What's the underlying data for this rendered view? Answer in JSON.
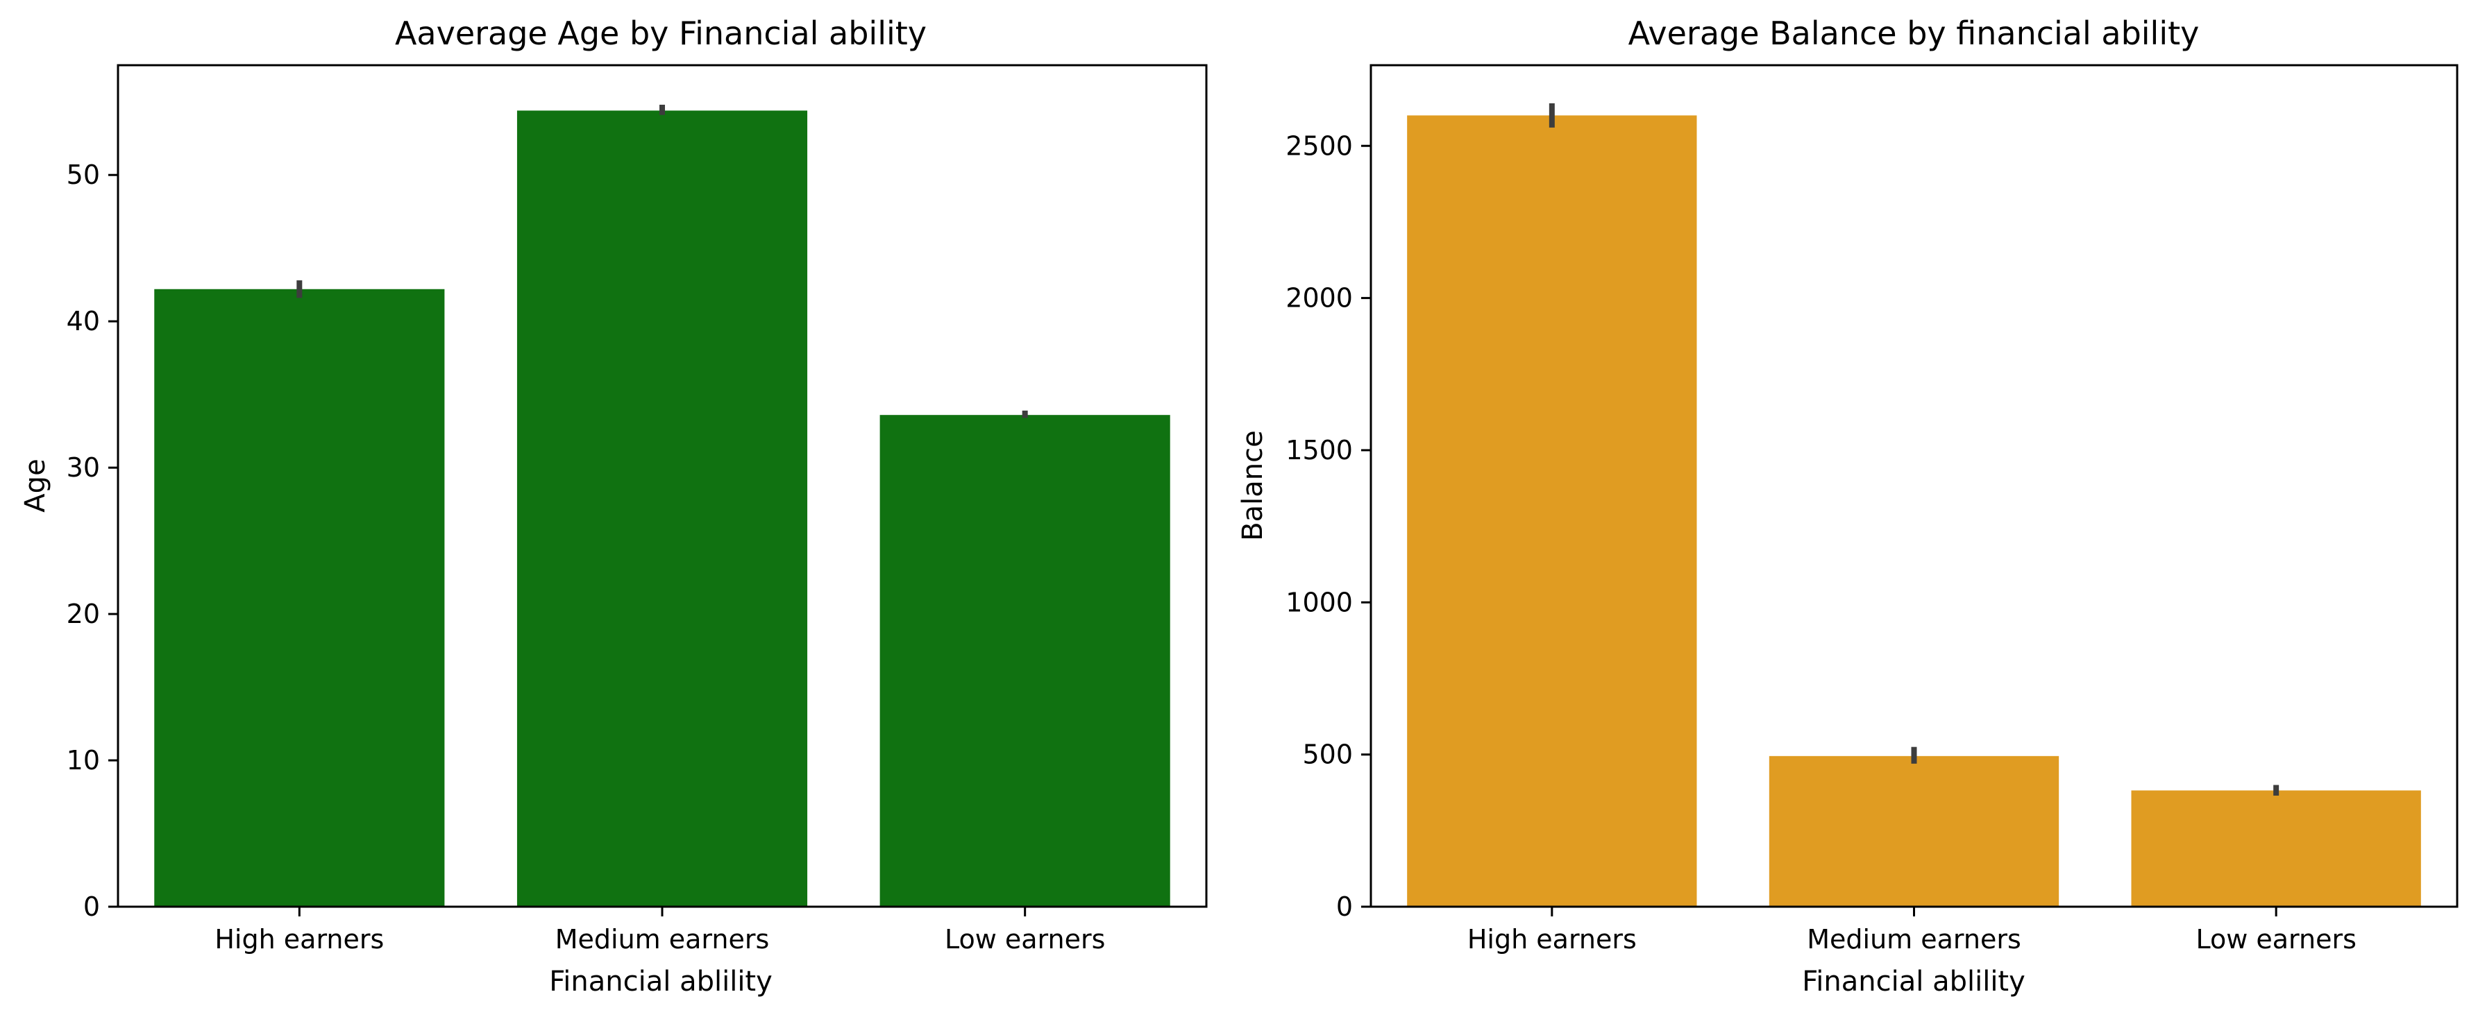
{
  "chart_data": [
    {
      "type": "bar",
      "title": "Aaverage Age by Financial ability",
      "xlabel": "Financial ablility",
      "ylabel": "Age",
      "categories": [
        "High earners",
        "Medium earners",
        "Low earners"
      ],
      "values": [
        42.2,
        54.4,
        33.6
      ],
      "error_bars": [
        [
          41.6,
          42.8
        ],
        [
          54.1,
          54.8
        ],
        [
          33.4,
          33.9
        ]
      ],
      "ylim": [
        0,
        57.5
      ],
      "yticks": [
        0,
        10,
        20,
        30,
        40,
        50
      ],
      "bar_color": "#107211",
      "errorbar_color": "#3d3d3d",
      "grid": false,
      "legend": "none"
    },
    {
      "type": "bar",
      "title": "Average Balance by financial ability",
      "xlabel": "Financial ablility",
      "ylabel": "Balance",
      "categories": [
        "High earners",
        "Medium earners",
        "Low earners"
      ],
      "values": [
        2600,
        495,
        382
      ],
      "error_bars": [
        [
          2560,
          2640
        ],
        [
          470,
          525
        ],
        [
          365,
          400
        ]
      ],
      "ylim": [
        0,
        2765
      ],
      "yticks": [
        0,
        500,
        1000,
        1500,
        2000,
        2500
      ],
      "bar_color": "#e09c22",
      "errorbar_color": "#3d3d3d",
      "grid": false,
      "legend": "none"
    }
  ]
}
